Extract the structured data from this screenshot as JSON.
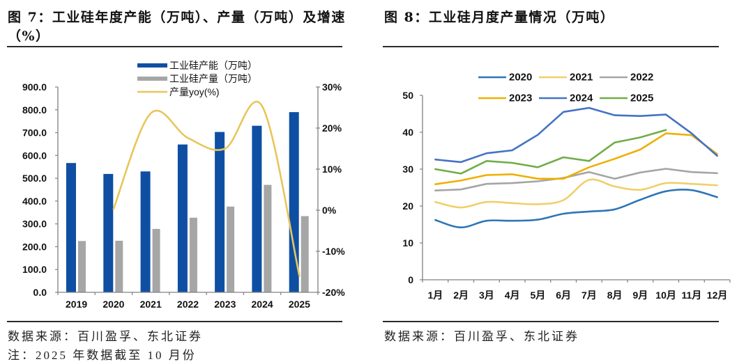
{
  "left_panel": {
    "title": "图 7：工业硅年度产能（万吨）、产量（万吨）及增速（%）",
    "source": "数据来源：百川盈孚、东北证券",
    "note": "注：2025 年数据截至 10 月份"
  },
  "right_panel": {
    "title": "图 8：工业硅月度产量情况（万吨）",
    "source": "数据来源：百川盈孚、东北证券"
  },
  "chart_data": [
    {
      "type": "bar",
      "title": "工业硅年度产能（万吨）、产量（万吨）及增速（%）",
      "xlabel": "",
      "ylabel": "",
      "categories": [
        "2019",
        "2020",
        "2021",
        "2022",
        "2023",
        "2024",
        "2025"
      ],
      "series": [
        {
          "name": "工业硅产能（万吨）",
          "type": "bar",
          "axis": "left",
          "color": "#0E4FA3",
          "values": [
            567,
            519,
            530,
            648,
            703,
            730,
            790
          ]
        },
        {
          "name": "工业硅产量（万吨）",
          "type": "bar",
          "axis": "left",
          "color": "#A6A6A6",
          "values": [
            225,
            226,
            278,
            327,
            376,
            471,
            334
          ]
        },
        {
          "name": "产量yoy(%)",
          "type": "line",
          "axis": "right",
          "smooth": true,
          "color": "#E8C65A",
          "values": [
            null,
            0.3,
            23.6,
            17.6,
            15.0,
            25.3,
            -16.0
          ]
        }
      ],
      "ylim": [
        0,
        900
      ],
      "y_ticks": [
        0,
        100,
        200,
        300,
        400,
        500,
        600,
        700,
        800,
        900
      ],
      "y_tick_labels": [
        "0.0",
        "100.0",
        "200.0",
        "300.0",
        "400.0",
        "500.0",
        "600.0",
        "700.0",
        "800.0",
        "900.0"
      ],
      "y2lim": [
        -20,
        30
      ],
      "y2_ticks": [
        -20,
        -10,
        0,
        10,
        20,
        30
      ],
      "y2_tick_labels": [
        "-20%",
        "-10%",
        "0%",
        "10%",
        "20%",
        "30%"
      ],
      "legend": "top-center",
      "grid": false
    },
    {
      "type": "line",
      "title": "工业硅月度产量情况（万吨）",
      "xlabel": "",
      "ylabel": "",
      "categories": [
        "1月",
        "2月",
        "3月",
        "4月",
        "5月",
        "6月",
        "7月",
        "8月",
        "9月",
        "10月",
        "11月",
        "12月"
      ],
      "series": [
        {
          "name": "2020",
          "color": "#2E75B6",
          "smooth": true,
          "values": [
            16.2,
            14.2,
            16.0,
            16.0,
            16.3,
            17.9,
            18.5,
            19.1,
            21.7,
            24.0,
            24.3,
            22.4
          ]
        },
        {
          "name": "2021",
          "color": "#F0CF6A",
          "smooth": true,
          "values": [
            21.1,
            19.6,
            21.1,
            20.8,
            20.5,
            21.6,
            27.1,
            25.3,
            24.4,
            26.2,
            26.0,
            25.6
          ]
        },
        {
          "name": "2022",
          "color": "#A5A5A5",
          "smooth": false,
          "values": [
            24.2,
            24.5,
            26.0,
            26.2,
            26.7,
            27.6,
            29.2,
            27.4,
            29.1,
            30.1,
            29.2,
            28.9
          ]
        },
        {
          "name": "2023",
          "color": "#EEB000",
          "smooth": false,
          "values": [
            25.9,
            26.9,
            28.4,
            28.6,
            27.4,
            27.4,
            30.5,
            32.8,
            35.3,
            39.7,
            39.2,
            34.1
          ]
        },
        {
          "name": "2024",
          "color": "#4472C4",
          "smooth": false,
          "values": [
            32.6,
            31.9,
            34.3,
            35.1,
            39.3,
            45.5,
            46.6,
            44.6,
            44.4,
            44.8,
            39.7,
            33.6
          ]
        },
        {
          "name": "2025",
          "color": "#70AD47",
          "smooth": false,
          "values": [
            30.0,
            28.8,
            32.2,
            31.7,
            30.5,
            33.2,
            32.2,
            37.2,
            38.6,
            40.6
          ]
        }
      ],
      "ylim": [
        0,
        50
      ],
      "y_ticks": [
        0,
        10,
        20,
        30,
        40,
        50
      ],
      "y_tick_labels": [
        "0",
        "10",
        "20",
        "30",
        "40",
        "50"
      ],
      "legend": "top-center",
      "grid": false
    }
  ]
}
